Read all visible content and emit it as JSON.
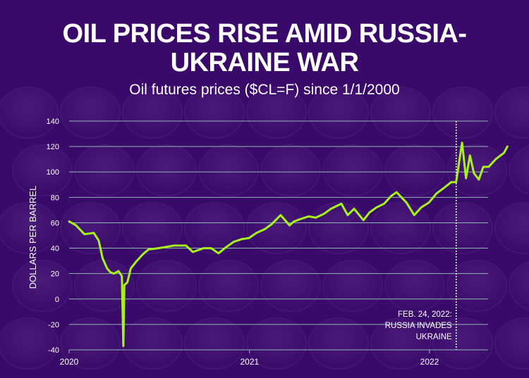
{
  "header": {
    "title_line1": "OIL PRICES RISE AMID RUSSIA-",
    "title_line2": "UKRAINE WAR",
    "subtitle": "Oil futures prices ($CL=F) since 1/1/2000"
  },
  "colors": {
    "background": "#3a0a6a",
    "line": "#a6f21b",
    "grid": "#8fb5b5"
  },
  "chart_data": {
    "type": "line",
    "title": "OIL PRICES RISE AMID RUSSIA-UKRAINE WAR",
    "subtitle": "Oil futures prices ($CL=F) since 1/1/2000",
    "xlabel": "",
    "ylabel": "DOLLARS PER BARREL",
    "ylim": [
      -40,
      140
    ],
    "yticks": [
      "140",
      "120",
      "100",
      "80",
      "60",
      "40",
      "20",
      "0",
      "-20",
      "-40"
    ],
    "xticks": [
      "2020",
      "2021",
      "2022"
    ],
    "grid": true,
    "annotation": {
      "date": "2022-02-24",
      "lines": [
        "FEB. 24, 2022:",
        "RUSSIA INVADES",
        "UKRAINE"
      ]
    },
    "series": [
      {
        "x": [
          "2020-01-01",
          "2020-01-15",
          "2020-02-01",
          "2020-02-20",
          "2020-03-01",
          "2020-03-09",
          "2020-03-18",
          "2020-03-25",
          "2020-04-01",
          "2020-04-10",
          "2020-04-17",
          "2020-04-20",
          "2020-04-22",
          "2020-04-28",
          "2020-05-05",
          "2020-05-15",
          "2020-05-29",
          "2020-06-10",
          "2020-06-30",
          "2020-07-15",
          "2020-08-01",
          "2020-08-25",
          "2020-09-08",
          "2020-09-30",
          "2020-10-15",
          "2020-10-30",
          "2020-11-15",
          "2020-11-30",
          "2020-12-15",
          "2020-12-31",
          "2021-01-15",
          "2021-02-01",
          "2021-02-15",
          "2021-03-05",
          "2021-03-23",
          "2021-04-01",
          "2021-04-15",
          "2021-05-01",
          "2021-05-15",
          "2021-06-01",
          "2021-06-15",
          "2021-07-06",
          "2021-07-19",
          "2021-08-01",
          "2021-08-20",
          "2021-09-01",
          "2021-09-15",
          "2021-10-01",
          "2021-10-15",
          "2021-10-26",
          "2021-11-15",
          "2021-12-01",
          "2021-12-15",
          "2021-12-31",
          "2022-01-15",
          "2022-02-01",
          "2022-02-14",
          "2022-02-24",
          "2022-03-01",
          "2022-03-08",
          "2022-03-16",
          "2022-03-24",
          "2022-04-01",
          "2022-04-11",
          "2022-04-20",
          "2022-05-01",
          "2022-05-15",
          "2022-06-01",
          "2022-06-08"
        ],
        "values": [
          61,
          58,
          51,
          52,
          46,
          32,
          24,
          21,
          20,
          22,
          18,
          -37,
          11,
          13,
          24,
          29,
          35,
          39,
          40,
          41,
          42,
          42,
          37,
          40,
          40,
          36,
          41,
          45,
          47,
          48,
          52,
          55,
          59,
          66,
          58,
          61,
          63,
          65,
          64,
          67,
          71,
          75,
          66,
          71,
          62,
          68,
          72,
          75,
          81,
          84,
          76,
          66,
          72,
          76,
          83,
          88,
          92,
          92,
          105,
          123,
          95,
          113,
          99,
          94,
          104,
          104,
          110,
          115,
          120
        ]
      }
    ]
  }
}
